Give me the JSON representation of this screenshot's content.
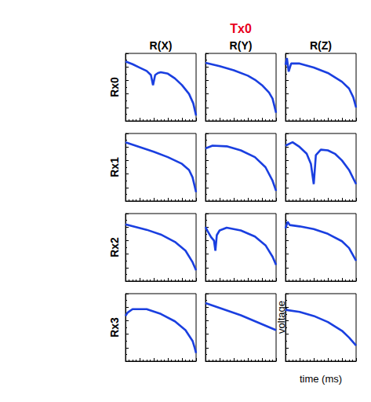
{
  "title": "Tx0",
  "column_labels": [
    "R(X)",
    "R(Y)",
    "R(Z)"
  ],
  "row_labels": [
    "Rx0",
    "Rx1",
    "Rx2",
    "Rx3"
  ],
  "chart_data": [
    {
      "type": "line",
      "color": "#1a3fe0",
      "tick_labels": false,
      "grid": false,
      "xlim": [
        0,
        10
      ],
      "ylim": [
        0,
        10
      ],
      "xticks": [
        0,
        2,
        4,
        6,
        8,
        10
      ],
      "yticks": [
        0,
        2,
        4,
        6,
        8,
        10
      ],
      "x": [
        0,
        1,
        2,
        3,
        3.6,
        3.9,
        4.2,
        4.6,
        5,
        6,
        7,
        8,
        9,
        9.6,
        10
      ],
      "values": [
        8.8,
        8.4,
        7.9,
        7.4,
        6.8,
        5.3,
        6.8,
        7.1,
        7.2,
        7.0,
        6.3,
        5.3,
        4.0,
        2.6,
        0.8
      ]
    },
    {
      "type": "line",
      "color": "#1a3fe0",
      "tick_labels": false,
      "grid": false,
      "xlim": [
        0,
        10
      ],
      "ylim": [
        0,
        10
      ],
      "xticks": [
        0,
        2,
        4,
        6,
        8,
        10
      ],
      "yticks": [
        0,
        2,
        4,
        6,
        8,
        10
      ],
      "x": [
        0,
        2,
        4,
        6,
        7,
        8,
        9,
        9.5,
        10
      ],
      "values": [
        8.6,
        8.1,
        7.5,
        6.7,
        6.1,
        5.3,
        4.2,
        3.3,
        1.2
      ]
    },
    {
      "type": "line",
      "color": "#1a3fe0",
      "tick_labels": false,
      "grid": false,
      "xlim": [
        0,
        10
      ],
      "ylim": [
        0,
        10
      ],
      "xticks": [
        0,
        2,
        4,
        6,
        8,
        10
      ],
      "yticks": [
        0,
        2,
        4,
        6,
        8,
        10
      ],
      "x": [
        0,
        0.2,
        0.45,
        0.8,
        2,
        4,
        6,
        8,
        9,
        9.6,
        10
      ],
      "values": [
        8.3,
        9.3,
        7.3,
        8.5,
        8.5,
        7.9,
        7.1,
        5.8,
        4.8,
        3.5,
        2.0
      ]
    },
    {
      "type": "line",
      "color": "#1a3fe0",
      "tick_labels": false,
      "grid": false,
      "xlim": [
        0,
        10
      ],
      "ylim": [
        0,
        10
      ],
      "xticks": [
        0,
        2,
        4,
        6,
        8,
        10
      ],
      "yticks": [
        0,
        2,
        4,
        6,
        8,
        10
      ],
      "x": [
        0,
        2,
        4,
        6,
        8,
        9,
        9.5,
        10
      ],
      "values": [
        8.7,
        8.0,
        7.3,
        6.5,
        5.5,
        4.6,
        3.5,
        1.3
      ]
    },
    {
      "type": "line",
      "color": "#1a3fe0",
      "tick_labels": false,
      "grid": false,
      "xlim": [
        0,
        10
      ],
      "ylim": [
        0,
        10
      ],
      "xticks": [
        0,
        2,
        4,
        6,
        8,
        10
      ],
      "yticks": [
        0,
        2,
        4,
        6,
        8,
        10
      ],
      "x": [
        0,
        1,
        3,
        5,
        7,
        8.5,
        9.5,
        10
      ],
      "values": [
        7.8,
        8.2,
        8.1,
        7.5,
        6.5,
        5.0,
        3.0,
        1.5
      ]
    },
    {
      "type": "line",
      "color": "#1a3fe0",
      "tick_labels": false,
      "grid": false,
      "xlim": [
        0,
        10
      ],
      "ylim": [
        0,
        10
      ],
      "xticks": [
        0,
        2,
        4,
        6,
        8,
        10
      ],
      "yticks": [
        0,
        2,
        4,
        6,
        8,
        10
      ],
      "x": [
        0,
        1,
        2,
        3,
        3.6,
        4.0,
        4.3,
        5,
        6,
        7,
        8,
        9,
        10
      ],
      "values": [
        8.2,
        8.7,
        8.0,
        7.0,
        5.5,
        2.5,
        6.8,
        7.6,
        7.5,
        7.0,
        6.0,
        4.6,
        2.5
      ]
    },
    {
      "type": "line",
      "color": "#1a3fe0",
      "tick_labels": false,
      "grid": false,
      "xlim": [
        0,
        10
      ],
      "ylim": [
        0,
        10
      ],
      "xticks": [
        0,
        2,
        4,
        6,
        8,
        10
      ],
      "yticks": [
        0,
        2,
        4,
        6,
        8,
        10
      ],
      "x": [
        0,
        3,
        5,
        7,
        8.5,
        9.5,
        10
      ],
      "values": [
        8.4,
        7.6,
        6.9,
        5.8,
        4.5,
        2.8,
        1.6
      ]
    },
    {
      "type": "line",
      "color": "#1a3fe0",
      "tick_labels": false,
      "grid": false,
      "xlim": [
        0,
        10
      ],
      "ylim": [
        0,
        10
      ],
      "xticks": [
        0,
        2,
        4,
        6,
        8,
        10
      ],
      "yticks": [
        0,
        2,
        4,
        6,
        8,
        10
      ],
      "x": [
        0,
        0.3,
        0.8,
        1.2,
        1.4,
        1.6,
        2,
        3,
        5,
        7,
        8.5,
        9.5,
        10
      ],
      "values": [
        8.0,
        7.4,
        6.5,
        6.0,
        4.5,
        6.8,
        7.5,
        7.9,
        7.5,
        6.6,
        5.3,
        3.6,
        2.4
      ]
    },
    {
      "type": "line",
      "color": "#1a3fe0",
      "tick_labels": false,
      "grid": false,
      "xlim": [
        0,
        10
      ],
      "ylim": [
        0,
        10
      ],
      "xticks": [
        0,
        2,
        4,
        6,
        8,
        10
      ],
      "yticks": [
        0,
        2,
        4,
        6,
        8,
        10
      ],
      "x": [
        0,
        0.3,
        0.6,
        2,
        4,
        6,
        8,
        9,
        10
      ],
      "values": [
        7.8,
        8.8,
        8.3,
        8.1,
        7.7,
        7.0,
        5.9,
        4.9,
        3.0
      ]
    },
    {
      "type": "line",
      "color": "#1a3fe0",
      "tick_labels": false,
      "grid": false,
      "xlim": [
        0,
        10
      ],
      "ylim": [
        0,
        10
      ],
      "xticks": [
        0,
        2,
        4,
        6,
        8,
        10
      ],
      "yticks": [
        0,
        2,
        4,
        6,
        8,
        10
      ],
      "x": [
        0,
        0.3,
        1,
        3,
        5,
        7,
        8.5,
        9.5,
        9.8,
        10
      ],
      "values": [
        6.7,
        7.2,
        7.7,
        7.7,
        7.0,
        5.9,
        4.6,
        3.0,
        2.0,
        1.2
      ]
    },
    {
      "type": "line",
      "color": "#1a3fe0",
      "tick_labels": false,
      "grid": false,
      "xlim": [
        0,
        10
      ],
      "ylim": [
        0,
        10
      ],
      "xticks": [
        0,
        2,
        4,
        6,
        8,
        10
      ],
      "yticks": [
        0,
        2,
        4,
        6,
        8,
        10
      ],
      "x": [
        0,
        5,
        10
      ],
      "values": [
        8.6,
        6.8,
        4.6
      ]
    },
    {
      "type": "line",
      "color": "#1a3fe0",
      "tick_labels": false,
      "grid": false,
      "xlim": [
        0,
        10
      ],
      "ylim": [
        0,
        10
      ],
      "xticks": [
        0,
        2,
        4,
        6,
        8,
        10
      ],
      "yticks": [
        0,
        2,
        4,
        6,
        8,
        10
      ],
      "x_label": "time (ms)",
      "y_label": "voltage",
      "x": [
        0,
        2,
        4,
        6,
        8,
        9,
        10
      ],
      "values": [
        7.6,
        7.3,
        6.7,
        5.8,
        4.5,
        3.5,
        2.3
      ]
    }
  ]
}
